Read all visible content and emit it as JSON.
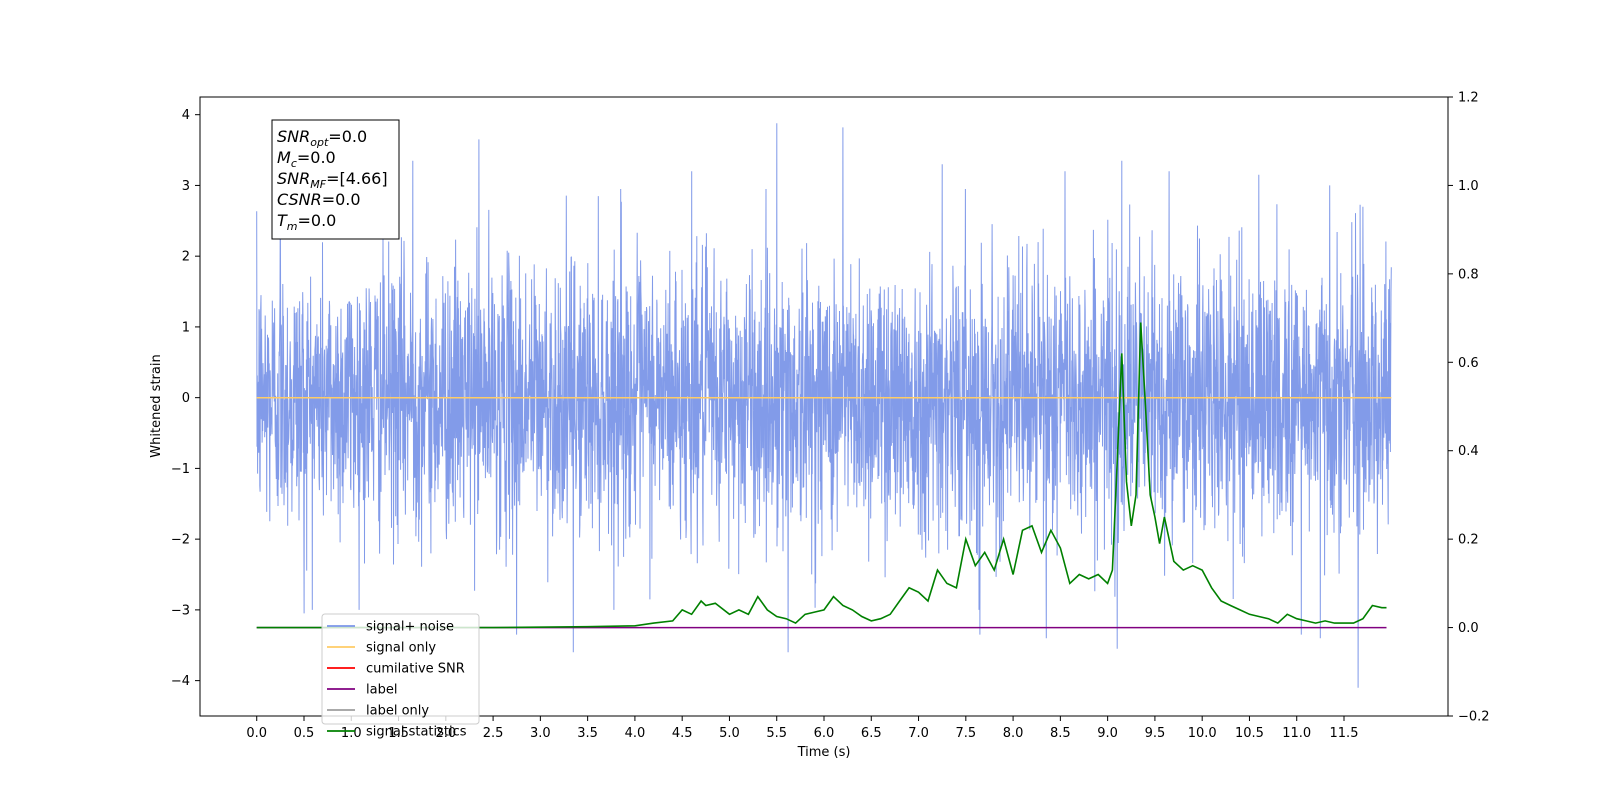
{
  "chart_data": {
    "type": "line",
    "title": "",
    "xlabel": "Time (s)",
    "ylabel": "Whitened strain",
    "y2label": "",
    "xlim": [
      -0.6,
      12.6
    ],
    "ylim": [
      -4.5,
      4.25
    ],
    "y2lim": [
      -0.2,
      1.2
    ],
    "xticks": [
      "0.0",
      "0.5",
      "1.0",
      "1.5",
      "2.0",
      "2.5",
      "3.0",
      "3.5",
      "4.0",
      "4.5",
      "5.0",
      "5.5",
      "6.0",
      "6.5",
      "7.0",
      "7.5",
      "8.0",
      "8.5",
      "9.0",
      "9.5",
      "10.0",
      "10.5",
      "11.0",
      "11.5"
    ],
    "yticks": [
      "4",
      "3",
      "2",
      "1",
      "0",
      "−1",
      "−2",
      "−3",
      "−4"
    ],
    "y2ticks": [
      "1.2",
      "1.0",
      "0.8",
      "0.6",
      "0.4",
      "0.2",
      "0.0",
      "−0.2"
    ],
    "grid": false,
    "legend_position": "lower-left",
    "legend": [
      {
        "label": "signal+ noise",
        "color": "#7b96e8"
      },
      {
        "label": "signal only",
        "color": "#ffcc66"
      },
      {
        "label": "cumilative SNR",
        "color": "#ff0000"
      },
      {
        "label": "label",
        "color": "#800080"
      },
      {
        "label": "label only",
        "color": "#9e9e9e"
      },
      {
        "label": "signal statistics",
        "color": "#008000"
      }
    ],
    "annotation": {
      "lines": [
        {
          "label": "SNR",
          "sub": "opt",
          "value": "=0.0"
        },
        {
          "label": "M",
          "sub": "c",
          "value": "=0.0"
        },
        {
          "label": "SNR",
          "sub": "MF",
          "value": "=[4.66]"
        },
        {
          "label": "CSNR",
          "sub": "",
          "value": "=0.0"
        },
        {
          "label": "T",
          "sub": "m",
          "value": "=0.0"
        }
      ]
    },
    "series": [
      {
        "name": "signal+ noise",
        "axis": "left",
        "color": "#7b96e8",
        "t_range": [
          0.0,
          12.0
        ],
        "y_range": [
          -4.1,
          3.88
        ],
        "spikes_up": [
          [
            0.25,
            3.0
          ],
          [
            1.65,
            3.35
          ],
          [
            2.35,
            3.65
          ],
          [
            3.85,
            2.95
          ],
          [
            4.6,
            3.2
          ],
          [
            5.5,
            3.88
          ],
          [
            6.2,
            3.82
          ],
          [
            7.25,
            3.3
          ],
          [
            8.55,
            3.2
          ],
          [
            9.1,
            3.4
          ],
          [
            9.15,
            3.35
          ],
          [
            9.65,
            3.2
          ],
          [
            10.6,
            3.15
          ],
          [
            11.35,
            3.0
          ],
          [
            11.7,
            2.7
          ]
        ],
        "spikes_down": [
          [
            0.5,
            -3.05
          ],
          [
            2.75,
            -3.35
          ],
          [
            3.35,
            -3.6
          ],
          [
            5.62,
            -3.6
          ],
          [
            7.65,
            -3.35
          ],
          [
            8.35,
            -3.4
          ],
          [
            9.1,
            -3.55
          ],
          [
            11.05,
            -3.35
          ],
          [
            11.25,
            -3.4
          ],
          [
            11.65,
            -4.1
          ]
        ]
      },
      {
        "name": "signal only",
        "axis": "left",
        "color": "#ffcc66",
        "x": [
          0.0,
          12.0
        ],
        "y": [
          0.0,
          0.0
        ]
      },
      {
        "name": "label",
        "axis": "right",
        "color": "#800080",
        "x": [
          0.0,
          11.95
        ],
        "y": [
          0.0,
          0.0
        ]
      },
      {
        "name": "signal statistics",
        "axis": "right",
        "color": "#008000",
        "x": [
          0.0,
          2.5,
          3.5,
          4.0,
          4.2,
          4.4,
          4.5,
          4.6,
          4.7,
          4.75,
          4.85,
          5.0,
          5.1,
          5.2,
          5.3,
          5.4,
          5.5,
          5.6,
          5.7,
          5.8,
          5.9,
          6.0,
          6.1,
          6.2,
          6.3,
          6.4,
          6.5,
          6.6,
          6.7,
          6.8,
          6.9,
          7.0,
          7.1,
          7.2,
          7.3,
          7.4,
          7.5,
          7.6,
          7.7,
          7.8,
          7.9,
          8.0,
          8.1,
          8.2,
          8.3,
          8.4,
          8.5,
          8.6,
          8.7,
          8.8,
          8.9,
          9.0,
          9.05,
          9.1,
          9.15,
          9.2,
          9.25,
          9.3,
          9.35,
          9.4,
          9.45,
          9.5,
          9.55,
          9.6,
          9.7,
          9.8,
          9.9,
          10.0,
          10.1,
          10.2,
          10.3,
          10.4,
          10.5,
          10.6,
          10.7,
          10.8,
          10.9,
          11.0,
          11.1,
          11.2,
          11.3,
          11.4,
          11.5,
          11.6,
          11.7,
          11.8,
          11.9,
          11.95
        ],
        "y": [
          0.0,
          0.0,
          0.002,
          0.004,
          0.01,
          0.015,
          0.04,
          0.03,
          0.06,
          0.05,
          0.055,
          0.03,
          0.04,
          0.03,
          0.07,
          0.04,
          0.025,
          0.02,
          0.01,
          0.03,
          0.035,
          0.04,
          0.07,
          0.05,
          0.04,
          0.025,
          0.015,
          0.02,
          0.03,
          0.06,
          0.09,
          0.08,
          0.06,
          0.13,
          0.1,
          0.09,
          0.2,
          0.14,
          0.17,
          0.13,
          0.2,
          0.12,
          0.22,
          0.23,
          0.17,
          0.22,
          0.18,
          0.1,
          0.12,
          0.11,
          0.12,
          0.1,
          0.13,
          0.37,
          0.62,
          0.33,
          0.23,
          0.3,
          0.69,
          0.5,
          0.3,
          0.25,
          0.19,
          0.25,
          0.15,
          0.13,
          0.14,
          0.13,
          0.09,
          0.06,
          0.05,
          0.04,
          0.03,
          0.025,
          0.02,
          0.01,
          0.03,
          0.02,
          0.015,
          0.01,
          0.015,
          0.01,
          0.01,
          0.01,
          0.02,
          0.05,
          0.045,
          0.045
        ]
      }
    ]
  }
}
